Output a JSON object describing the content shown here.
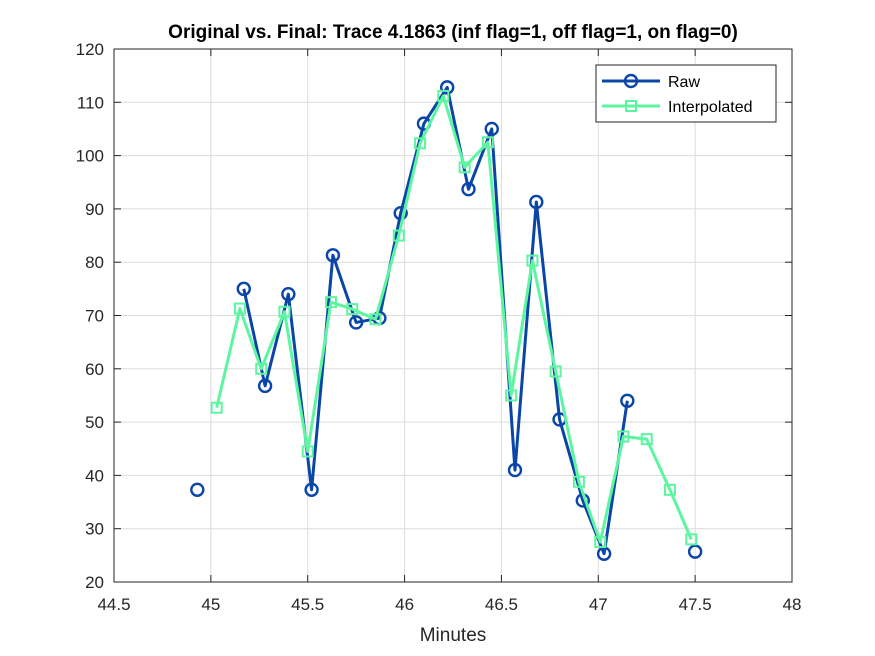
{
  "chart_data": {
    "type": "line",
    "title": "Original vs. Final: Trace 4.1863 (inf flag=1, off flag=1, on flag=0)",
    "xlabel": "Minutes",
    "ylabel": "",
    "xlim": [
      44.5,
      48
    ],
    "ylim": [
      20,
      120
    ],
    "xticks": [
      44.5,
      45,
      45.5,
      46,
      46.5,
      47,
      47.5,
      48
    ],
    "yticks": [
      20,
      30,
      40,
      50,
      60,
      70,
      80,
      90,
      100,
      110,
      120
    ],
    "xtick_labels": [
      "44.5",
      "45",
      "45.5",
      "46",
      "46.5",
      "47",
      "47.5",
      "48"
    ],
    "ytick_labels": [
      "20",
      "30",
      "40",
      "50",
      "60",
      "70",
      "80",
      "90",
      "100",
      "110",
      "120"
    ],
    "grid": true,
    "legend": "top-right",
    "series": [
      {
        "name": "Raw",
        "color": "#0a45a8",
        "marker": "circle",
        "segments": [
          [
            [
              44.93,
              37.3
            ]
          ],
          [
            [
              45.17,
              75.0
            ],
            [
              45.28,
              56.8
            ],
            [
              45.4,
              74.0
            ],
            [
              45.52,
              37.3
            ],
            [
              45.63,
              81.3
            ],
            [
              45.75,
              68.7
            ],
            [
              45.87,
              69.5
            ],
            [
              45.98,
              89.2
            ],
            [
              46.1,
              106.0
            ],
            [
              46.22,
              112.8
            ],
            [
              46.33,
              93.7
            ],
            [
              46.45,
              105.0
            ],
            [
              46.57,
              41.0
            ],
            [
              46.68,
              91.3
            ],
            [
              46.8,
              50.5
            ],
            [
              46.92,
              35.3
            ],
            [
              47.03,
              25.3
            ],
            [
              47.15,
              54.0
            ]
          ],
          [
            [
              47.5,
              25.7
            ]
          ]
        ]
      },
      {
        "name": "Interpolated",
        "color": "#5cf5a0",
        "marker": "square",
        "segments": [
          [
            [
              45.03,
              52.7
            ],
            [
              45.15,
              71.3
            ],
            [
              45.26,
              60.0
            ],
            [
              45.38,
              70.7
            ],
            [
              45.5,
              44.5
            ],
            [
              45.62,
              72.5
            ],
            [
              45.73,
              71.2
            ],
            [
              45.85,
              69.3
            ],
            [
              45.97,
              85.0
            ],
            [
              46.08,
              102.3
            ],
            [
              46.2,
              111.2
            ],
            [
              46.31,
              97.8
            ],
            [
              46.43,
              102.5
            ],
            [
              46.55,
              55.0
            ],
            [
              46.66,
              80.3
            ],
            [
              46.78,
              59.5
            ],
            [
              46.9,
              38.8
            ],
            [
              47.01,
              27.5
            ],
            [
              47.13,
              47.3
            ],
            [
              47.25,
              46.8
            ],
            [
              47.37,
              37.3
            ],
            [
              47.48,
              28.0
            ]
          ]
        ]
      }
    ]
  }
}
